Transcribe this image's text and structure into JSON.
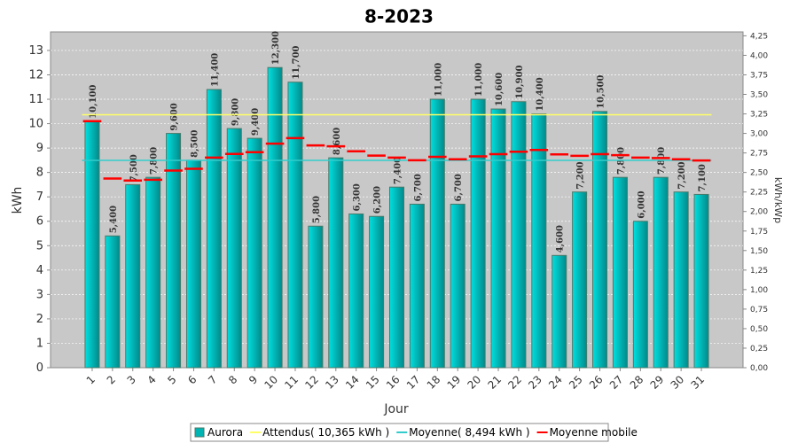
{
  "chart_data": {
    "type": "bar",
    "title": "8-2023",
    "x_label": "Jour",
    "y_label": "kWh",
    "y2_label": "kWh/kWp",
    "categories": [
      "1",
      "2",
      "3",
      "4",
      "5",
      "6",
      "7",
      "8",
      "9",
      "10",
      "11",
      "12",
      "13",
      "14",
      "15",
      "16",
      "17",
      "18",
      "19",
      "20",
      "21",
      "22",
      "23",
      "24",
      "25",
      "26",
      "27",
      "28",
      "29",
      "30",
      "31"
    ],
    "series": [
      {
        "name": "Aurora",
        "type": "bar",
        "color": "#00b4b4",
        "values": [
          10.1,
          5.4,
          7.5,
          7.8,
          9.6,
          8.5,
          11.4,
          9.8,
          9.4,
          12.3,
          11.7,
          5.8,
          8.6,
          6.3,
          6.2,
          7.4,
          6.7,
          11.0,
          6.7,
          11.0,
          10.6,
          10.9,
          10.4,
          4.6,
          7.2,
          10.5,
          7.8,
          6.0,
          7.8,
          7.2,
          7.1
        ],
        "value_labels": [
          "10,100",
          "5,400",
          "7,500",
          "7,800",
          "9,600",
          "8,500",
          "11,400",
          "9,800",
          "9,400",
          "12,300",
          "11,700",
          "5,800",
          "8,600",
          "6,300",
          "6,200",
          "7,400",
          "6,700",
          "11,000",
          "6,700",
          "11,000",
          "10,600",
          "10,900",
          "10,400",
          "4,600",
          "7,200",
          "10,500",
          "7,800",
          "6,000",
          "7,800",
          "7,200",
          "7,100"
        ]
      },
      {
        "name": "Attendus( 10,365 kWh )",
        "type": "hline",
        "color": "#ffff66",
        "value": 10.365
      },
      {
        "name": "Moyenne( 8,494 kWh )",
        "type": "hline",
        "color": "#33cccc",
        "value": 8.494
      },
      {
        "name": "Moyenne mobile",
        "type": "step",
        "color": "#ff0000",
        "values": [
          10.1,
          7.75,
          7.67,
          7.7,
          8.08,
          8.15,
          8.61,
          8.76,
          8.83,
          9.18,
          9.41,
          9.11,
          9.07,
          8.87,
          8.69,
          8.61,
          8.5,
          8.64,
          8.54,
          8.66,
          8.75,
          8.85,
          8.92,
          8.74,
          8.68,
          8.75,
          8.71,
          8.61,
          8.59,
          8.54,
          8.49
        ]
      }
    ],
    "ylim": [
      0,
      13.76
    ],
    "yticks": [
      0,
      1,
      2,
      3,
      4,
      5,
      6,
      7,
      8,
      9,
      10,
      11,
      12,
      13
    ],
    "y2lim": [
      0,
      4.3
    ],
    "y2ticks": [
      {
        "value": 0,
        "label": "0,00"
      },
      {
        "value": 0.25,
        "label": "0,25"
      },
      {
        "value": 0.5,
        "label": "0,50"
      },
      {
        "value": 0.75,
        "label": "0,75"
      },
      {
        "value": 1,
        "label": "1,00"
      },
      {
        "value": 1.25,
        "label": "1,25"
      },
      {
        "value": 1.5,
        "label": "1,50"
      },
      {
        "value": 1.75,
        "label": "1,75"
      },
      {
        "value": 2,
        "label": "2,00"
      },
      {
        "value": 2.25,
        "label": "2,25"
      },
      {
        "value": 2.5,
        "label": "2,50"
      },
      {
        "value": 2.75,
        "label": "2,75"
      },
      {
        "value": 3,
        "label": "3,00"
      },
      {
        "value": 3.25,
        "label": "3,25"
      },
      {
        "value": 3.5,
        "label": "3,50"
      },
      {
        "value": 3.75,
        "label": "3,75"
      },
      {
        "value": 4,
        "label": "4,00"
      },
      {
        "value": 4.25,
        "label": "4,25"
      }
    ],
    "grid": true
  }
}
